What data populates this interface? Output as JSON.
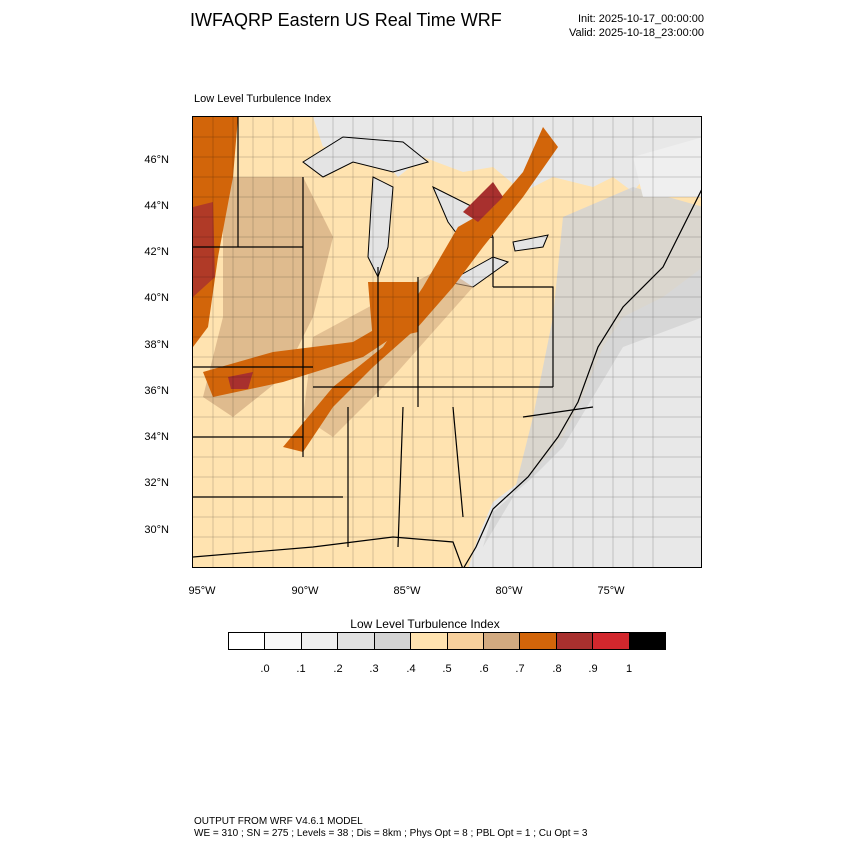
{
  "title": "IWFAQRP Eastern US Real Time WRF",
  "init": "Init: 2025-10-17_00:00:00",
  "valid": "Valid: 2025-10-18_23:00:00",
  "plot_title": "Low Level Turbulence Index",
  "lat_labels": [
    "46°N",
    "44°N",
    "42°N",
    "40°N",
    "38°N",
    "36°N",
    "34°N",
    "32°N",
    "30°N"
  ],
  "lon_labels": [
    "95°W",
    "90°W",
    "85°W",
    "80°W",
    "75°W"
  ],
  "colorbar": {
    "title": "Low Level Turbulence Index",
    "labels": [
      ".0",
      ".1",
      ".2",
      ".3",
      ".4",
      ".5",
      ".6",
      ".7",
      ".8",
      ".9",
      "1"
    ],
    "colors": [
      "#ffffff",
      "#f7f7f7",
      "#efefef",
      "#e1e1e1",
      "#d3d3d3",
      "#ffe3b0",
      "#f7d09c",
      "#d2aa80",
      "#d2650a",
      "#a8302e",
      "#d2272d",
      "#000000"
    ]
  },
  "map_colors": {
    "water": "#e8e8e8",
    "land_base": "#ffe3b0",
    "low": "#d3d3d3",
    "mid": "#d2aa80",
    "high": "#d2650a",
    "very_high": "#a8302e"
  },
  "footer": {
    "line1": "OUTPUT FROM WRF V4.6.1 MODEL",
    "line2": "WE = 310 ; SN = 275 ; Levels = 38 ; Dis = 8km ; Phys Opt = 8 ; PBL Opt = 1 ; Cu Opt = 3"
  }
}
